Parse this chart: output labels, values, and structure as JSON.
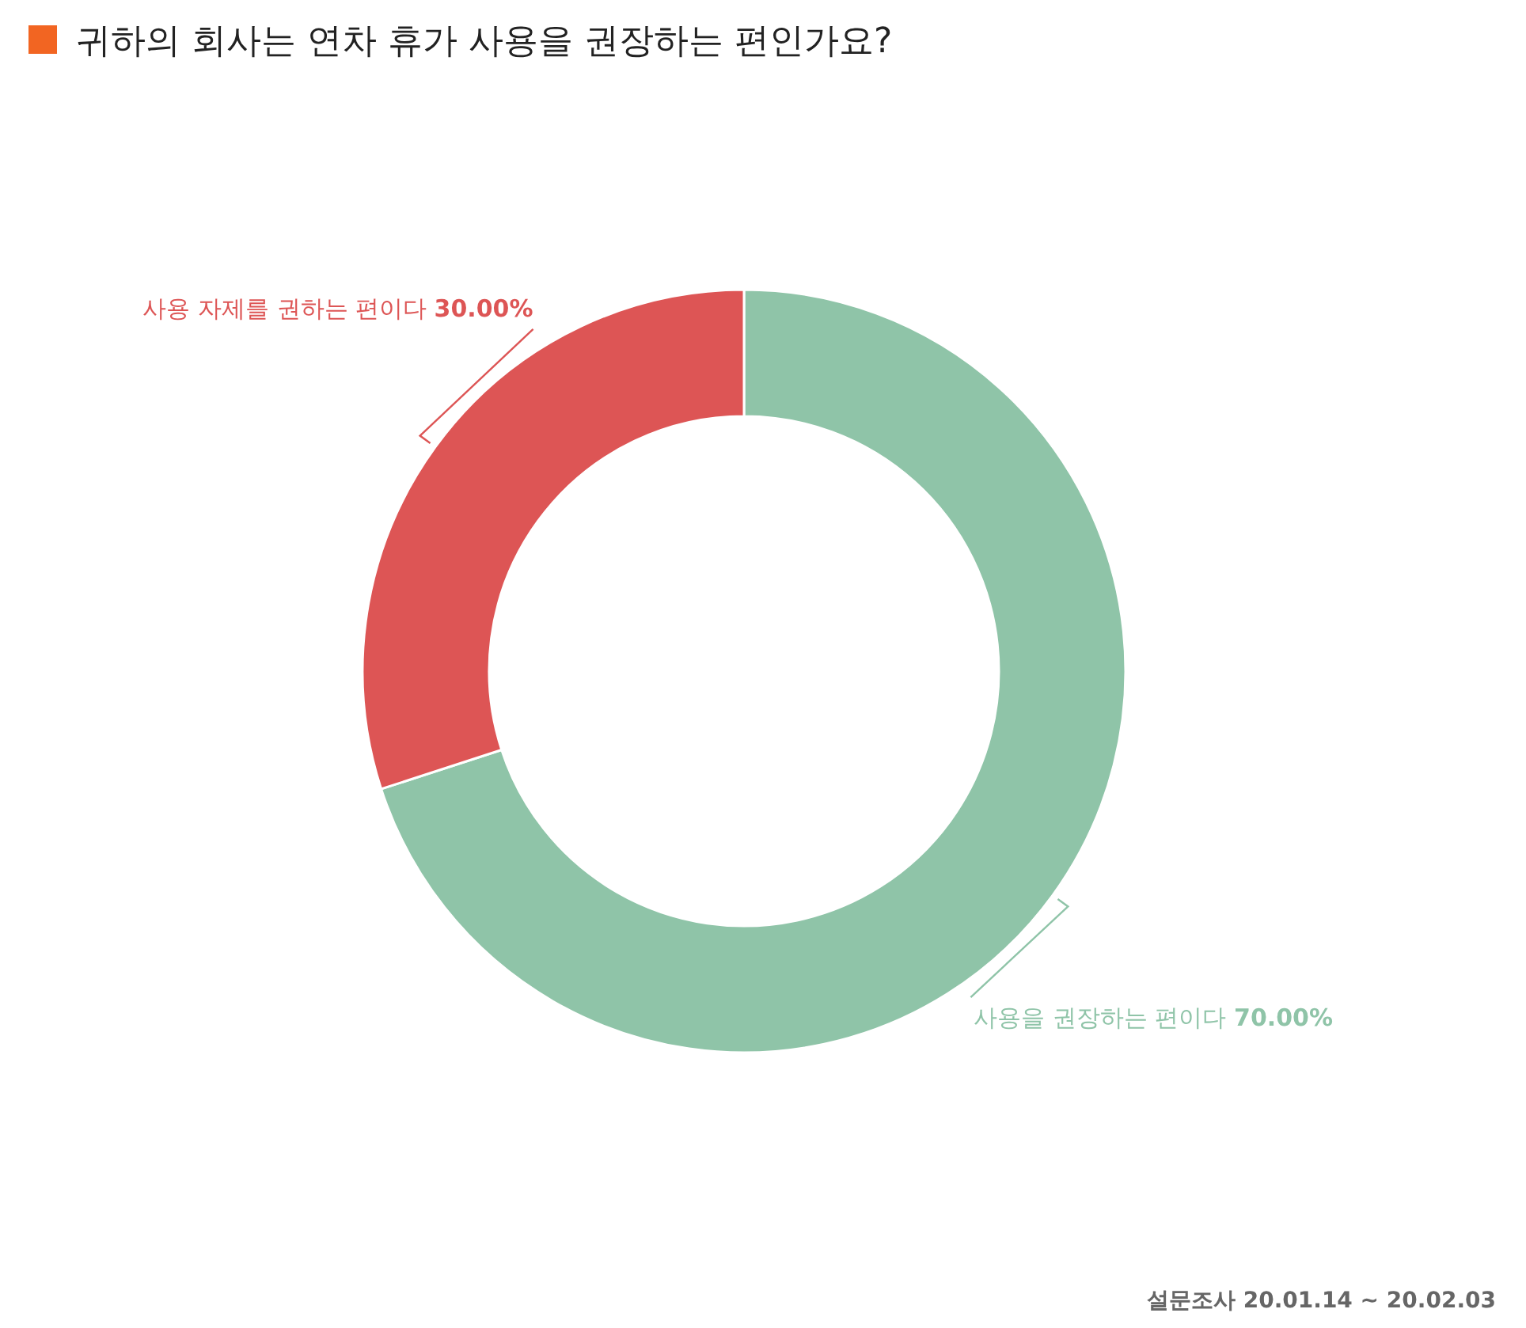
{
  "chart_data": {
    "type": "donut",
    "title": "귀하의 회사는 연차 휴가 사용을 권장하는 편인가요?",
    "categories": [
      "사용을 권장하는 편이다",
      "사용 자제를 권하는 편이다"
    ],
    "values": [
      70,
      30
    ],
    "colors": [
      "#8fc4a8",
      "#dd5555"
    ],
    "value_labels": [
      "70.00%",
      "30.00%"
    ],
    "annotations": [
      "설문조사 20.01.14 ~ 20.02.03"
    ]
  }
}
